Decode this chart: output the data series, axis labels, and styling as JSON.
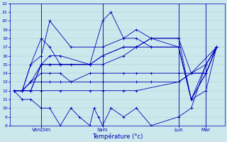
{
  "xlabel": "Température (°c)",
  "background_color": "#cce8ec",
  "line_color": "#0000bb",
  "grid_color": "#aacccc",
  "ylim": [
    8,
    22
  ],
  "yticks": [
    8,
    9,
    10,
    11,
    12,
    13,
    14,
    15,
    16,
    17,
    18,
    19,
    20,
    21,
    22
  ],
  "xtick_labels": [
    "VenDim",
    "Sam",
    "Lun",
    "Mar"
  ],
  "vline_positions": [
    0.13,
    0.42,
    0.78,
    0.91
  ],
  "series": [
    {
      "x": [
        0.0,
        0.04,
        0.08,
        0.13,
        0.17,
        0.22,
        0.27,
        0.36,
        0.42,
        0.46,
        0.52,
        0.58,
        0.65,
        0.78,
        0.84,
        0.91,
        0.96
      ],
      "y": [
        12,
        12,
        15,
        18,
        17,
        15,
        15,
        15,
        20,
        21,
        18,
        19,
        18,
        17,
        11,
        12,
        17
      ]
    },
    {
      "x": [
        0.0,
        0.04,
        0.08,
        0.13,
        0.17,
        0.27,
        0.42,
        0.52,
        0.58,
        0.65,
        0.78,
        0.84,
        0.91,
        0.96
      ],
      "y": [
        12,
        12,
        15,
        16,
        20,
        17,
        17,
        18,
        18,
        17,
        17,
        11,
        14,
        17
      ]
    },
    {
      "x": [
        0.0,
        0.04,
        0.08,
        0.13,
        0.17,
        0.22,
        0.36,
        0.42,
        0.52,
        0.58,
        0.65,
        0.78,
        0.84,
        0.91,
        0.96
      ],
      "y": [
        12,
        12,
        13,
        15,
        16,
        16,
        15,
        15,
        16,
        17,
        18,
        18,
        14,
        15,
        17
      ]
    },
    {
      "x": [
        0.0,
        0.04,
        0.08,
        0.13,
        0.17,
        0.22,
        0.27,
        0.36,
        0.42,
        0.52,
        0.58,
        0.65,
        0.78,
        0.84,
        0.91,
        0.96
      ],
      "y": [
        12,
        12,
        13,
        14,
        14,
        14,
        13,
        14,
        14,
        14,
        14,
        14,
        14,
        14,
        14,
        17
      ]
    },
    {
      "x": [
        0.0,
        0.04,
        0.08,
        0.13,
        0.17,
        0.22,
        0.36,
        0.42,
        0.58,
        0.65,
        0.78,
        0.84,
        0.91,
        0.96
      ],
      "y": [
        12,
        12,
        13,
        13,
        13,
        13,
        13,
        13,
        13,
        13,
        13,
        14,
        14,
        17
      ]
    },
    {
      "x": [
        0.0,
        0.04,
        0.08,
        0.13,
        0.22,
        0.36,
        0.42,
        0.52,
        0.58,
        0.78,
        0.84,
        0.96
      ],
      "y": [
        12,
        12,
        12,
        12,
        12,
        12,
        12,
        12,
        12,
        13,
        14,
        17
      ]
    },
    {
      "x": [
        0.0,
        0.04,
        0.08,
        0.13,
        0.17,
        0.22,
        0.27,
        0.31,
        0.36,
        0.38,
        0.4,
        0.42,
        0.46,
        0.52,
        0.58,
        0.65,
        0.78,
        0.84,
        0.91,
        0.96
      ],
      "y": [
        12,
        11,
        11,
        10,
        10,
        8,
        10,
        9,
        8,
        10,
        9,
        8,
        10,
        9,
        10,
        8,
        9,
        10,
        15,
        17
      ]
    },
    {
      "x": [
        0.0,
        0.04,
        0.08,
        0.13,
        0.17,
        0.22,
        0.36,
        0.42,
        0.52,
        0.58,
        0.65,
        0.78,
        0.84,
        0.91,
        0.96
      ],
      "y": [
        12,
        12,
        12,
        15,
        15,
        15,
        15,
        16,
        17,
        17,
        17,
        17,
        11,
        14,
        17
      ]
    },
    {
      "x": [
        0.0,
        0.04,
        0.08,
        0.13,
        0.17,
        0.22,
        0.36,
        0.42,
        0.52,
        0.58,
        0.65,
        0.78,
        0.84,
        0.91,
        0.96
      ],
      "y": [
        12,
        12,
        12,
        15,
        15,
        15,
        15,
        16,
        17,
        17,
        18,
        18,
        11,
        15,
        17
      ]
    }
  ]
}
